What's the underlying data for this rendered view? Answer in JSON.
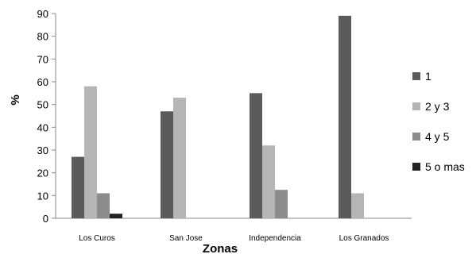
{
  "chart_data": {
    "type": "bar",
    "xlabel": "Zonas",
    "ylabel": "%",
    "ylim": [
      0,
      90
    ],
    "yticks": [
      0,
      10,
      20,
      30,
      40,
      50,
      60,
      70,
      80,
      90
    ],
    "categories": [
      "Los Curos",
      "San Jose",
      "Independencia",
      "Los Granados"
    ],
    "series": [
      {
        "name": "1",
        "color": "#5a5a5a",
        "values": [
          27,
          47,
          55,
          89
        ]
      },
      {
        "name": "2 y 3",
        "color": "#b5b5b5",
        "values": [
          58,
          53,
          32,
          11
        ]
      },
      {
        "name": "4 y 5",
        "color": "#8c8c8c",
        "values": [
          11,
          0,
          12.5,
          0
        ]
      },
      {
        "name": "5 o mas",
        "color": "#222222",
        "values": [
          2,
          0,
          0,
          0
        ]
      }
    ],
    "legend_position": "right",
    "grid": false
  }
}
